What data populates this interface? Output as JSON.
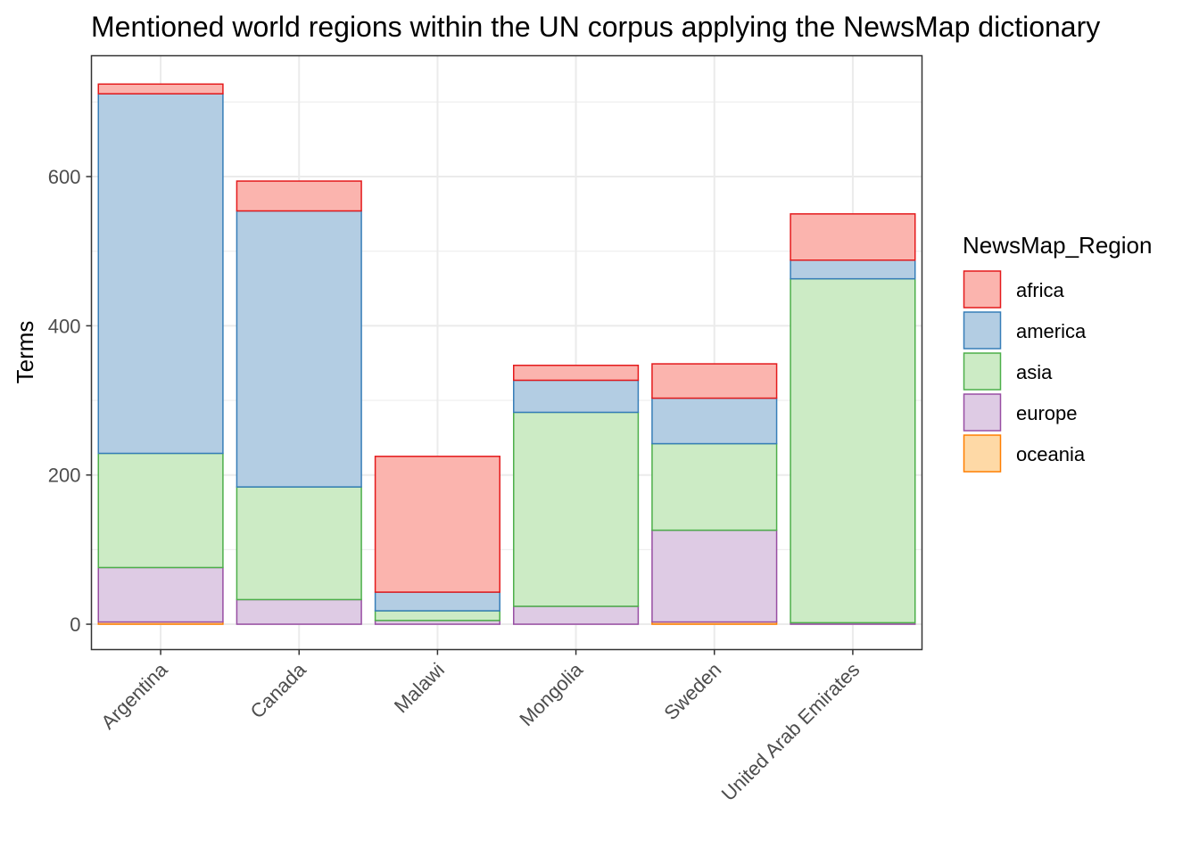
{
  "chart_data": {
    "type": "bar",
    "stacked": true,
    "title": "Mentioned world regions within the UN corpus applying the NewsMap dictionary",
    "xlabel": "",
    "ylabel": "Terms",
    "ylim": [
      -34,
      762
    ],
    "yticks": [
      0,
      200,
      400,
      600
    ],
    "grid": true,
    "legend_position": "right",
    "legend_title": "NewsMap_Region",
    "categories": [
      "Argentina",
      "Canada",
      "Malawi",
      "Mongolia",
      "Sweden",
      "United Arab Emirates"
    ],
    "series": [
      {
        "name": "oceania",
        "fill": "#FED9A6",
        "stroke": "#FF7F00",
        "values": [
          3,
          0,
          0,
          0,
          3,
          0
        ]
      },
      {
        "name": "europe",
        "fill": "#DECBE4",
        "stroke": "#984EA3",
        "values": [
          73,
          33,
          5,
          24,
          123,
          2
        ]
      },
      {
        "name": "asia",
        "fill": "#CCEBC5",
        "stroke": "#4DAF4A",
        "values": [
          153,
          151,
          13,
          260,
          116,
          461
        ]
      },
      {
        "name": "america",
        "fill": "#B3CDE3",
        "stroke": "#377EB8",
        "values": [
          482,
          370,
          25,
          43,
          61,
          25
        ]
      },
      {
        "name": "africa",
        "fill": "#FBB4AE",
        "stroke": "#E41A1C",
        "values": [
          13,
          40,
          182,
          20,
          46,
          62
        ]
      }
    ]
  }
}
